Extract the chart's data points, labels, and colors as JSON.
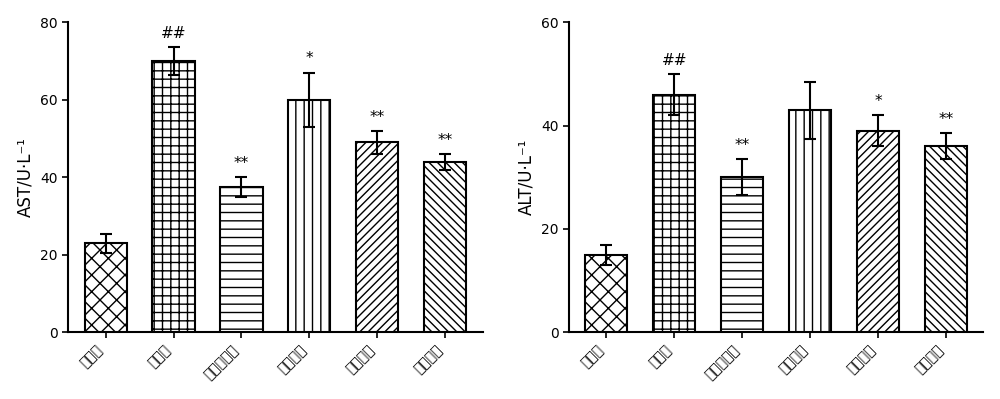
{
  "ast": {
    "categories": [
      "正常组",
      "模型组",
      "二甲双胍组",
      "低剂量组",
      "中剂量组",
      "高剂量组"
    ],
    "values": [
      23,
      70,
      37.5,
      60,
      49,
      44
    ],
    "errors": [
      2.5,
      3.5,
      2.5,
      7,
      3,
      2
    ],
    "ylabel": "AST/U·L⁻¹",
    "ylim": [
      0,
      80
    ],
    "yticks": [
      0,
      20,
      40,
      60,
      80
    ],
    "annotations": [
      "",
      "##",
      "**",
      "*",
      "**",
      "**"
    ]
  },
  "alt": {
    "categories": [
      "正常组",
      "模型组",
      "二甲双胍组",
      "低剂量组",
      "中剂量组",
      "高剂量组"
    ],
    "values": [
      15,
      46,
      30,
      43,
      39,
      36
    ],
    "errors": [
      2,
      4,
      3.5,
      5.5,
      3,
      2.5
    ],
    "ylabel": "ALT/U·L⁻¹",
    "ylim": [
      0,
      60
    ],
    "yticks": [
      0,
      20,
      40,
      60
    ],
    "annotations": [
      "",
      "##",
      "**",
      "",
      "*",
      "**"
    ]
  },
  "bar_color": "white",
  "bar_edgecolor": "black",
  "bar_linewidth": 1.5,
  "bar_width": 0.62,
  "error_capsize": 4,
  "error_linewidth": 1.5,
  "error_color": "black",
  "annotation_fontsize": 11,
  "ylabel_fontsize": 12,
  "tick_fontsize": 10,
  "fig_facecolor": "white"
}
